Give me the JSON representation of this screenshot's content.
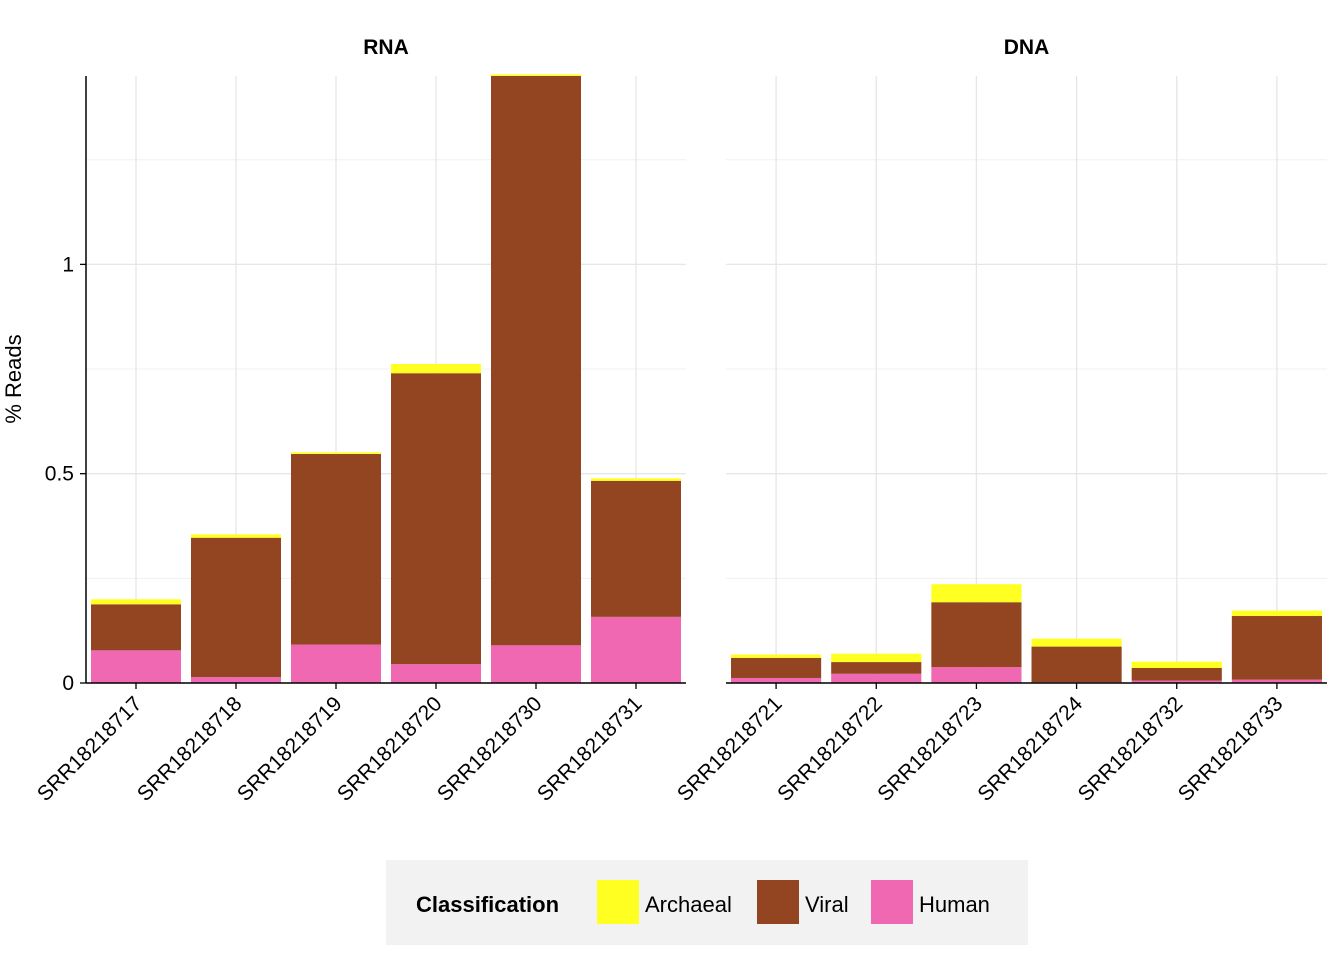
{
  "chart_data": {
    "type": "bar",
    "stacked": true,
    "ylabel": "% Reads",
    "xlabel": "",
    "ylim": [
      0,
      1.45
    ],
    "y_ticks": [
      0,
      0.5,
      1
    ],
    "y_tick_labels": [
      "0",
      "0.5",
      "1"
    ],
    "grid": true,
    "legend": {
      "title": "Classification",
      "placement": "bottom",
      "items": [
        {
          "name": "Archaeal",
          "color": "#FFFF22"
        },
        {
          "name": "Viral",
          "color": "#934421"
        },
        {
          "name": "Human",
          "color": "#F068B1"
        }
      ]
    },
    "stack_order": [
      "Human",
      "Viral",
      "Archaeal"
    ],
    "facets": [
      {
        "title": "RNA",
        "categories": [
          "SRR18218717",
          "SRR18218718",
          "SRR18218719",
          "SRR18218720",
          "SRR18218730",
          "SRR18218731"
        ],
        "series": [
          {
            "name": "Human",
            "values": [
              0.078,
              0.014,
              0.092,
              0.045,
              0.09,
              0.158
            ]
          },
          {
            "name": "Viral",
            "values": [
              0.11,
              0.333,
              0.455,
              0.695,
              1.36,
              0.325
            ]
          },
          {
            "name": "Archaeal",
            "values": [
              0.012,
              0.008,
              0.004,
              0.022,
              0.004,
              0.006
            ]
          }
        ]
      },
      {
        "title": "DNA",
        "categories": [
          "SRR18218721",
          "SRR18218722",
          "SRR18218723",
          "SRR18218724",
          "SRR18218732",
          "SRR18218733"
        ],
        "series": [
          {
            "name": "Human",
            "values": [
              0.012,
              0.022,
              0.038,
              0.002,
              0.006,
              0.008
            ]
          },
          {
            "name": "Viral",
            "values": [
              0.048,
              0.028,
              0.155,
              0.085,
              0.03,
              0.152
            ]
          },
          {
            "name": "Archaeal",
            "values": [
              0.008,
              0.02,
              0.043,
              0.019,
              0.015,
              0.013
            ]
          }
        ]
      }
    ]
  }
}
